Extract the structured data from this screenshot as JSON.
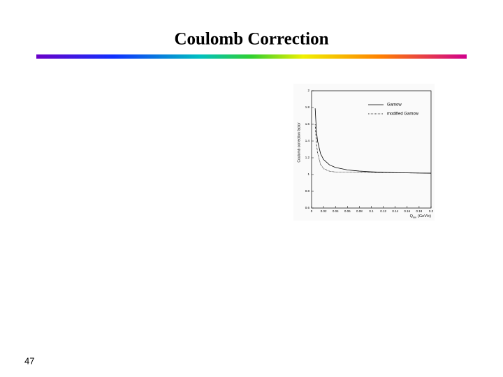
{
  "title": "Coulomb Correction",
  "page_number": "47",
  "chart_data": {
    "type": "line",
    "ylabel": "Coulomb correction factor",
    "xlabel": "Q",
    "xlabel_sub": "inv",
    "xlabel_unit": "(GeV/c)",
    "x": [
      0.006,
      0.008,
      0.01,
      0.015,
      0.02,
      0.03,
      0.04,
      0.06,
      0.08,
      0.1,
      0.12,
      0.14,
      0.16,
      0.18,
      0.2
    ],
    "series": [
      {
        "name": "Gamow",
        "color": "#000000",
        "style": "solid",
        "values": [
          1.79,
          1.53,
          1.4,
          1.25,
          1.18,
          1.115,
          1.084,
          1.055,
          1.041,
          1.033,
          1.027,
          1.023,
          1.02,
          1.018,
          1.016
        ]
      },
      {
        "name": "modified Gamow",
        "color": "#000000",
        "style": "dotted",
        "values": [
          1.6,
          1.38,
          1.26,
          1.12,
          1.07,
          1.04,
          1.03,
          1.03,
          1.025,
          1.022,
          1.02,
          1.02,
          1.02,
          1.018,
          1.016
        ]
      }
    ],
    "xlim": [
      0,
      0.2
    ],
    "xticks": [
      0,
      0.02,
      0.04,
      0.06,
      0.08,
      0.1,
      0.12,
      0.14,
      0.16,
      0.18,
      0.2
    ],
    "ylim": [
      0.6,
      2
    ],
    "yticks": [
      0.6,
      0.8,
      1,
      1.2,
      1.4,
      1.6,
      1.8,
      2
    ],
    "legend": "top-right",
    "grid": false
  }
}
